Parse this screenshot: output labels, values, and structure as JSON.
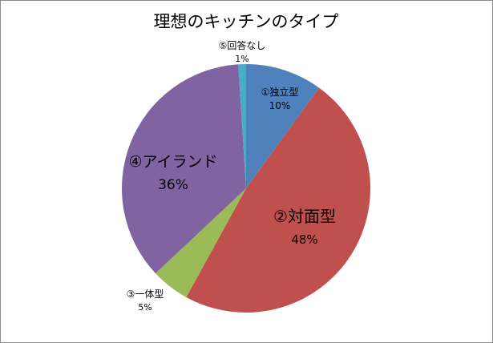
{
  "chart_data": {
    "type": "pie",
    "title": "理想のキッチンのタイプ",
    "categories": [
      "①独立型",
      "②対面型",
      "③一体型",
      "④アイランド",
      "⑤回答なし"
    ],
    "values": [
      10,
      48,
      5,
      36,
      1
    ],
    "value_labels": [
      "10%",
      "48%",
      "5%",
      "36%",
      "1%"
    ],
    "colors": [
      "#4f81bd",
      "#c0504d",
      "#9bbb59",
      "#8064a2",
      "#4bacc6"
    ],
    "start_angle": "12 o'clock",
    "direction": "clockwise",
    "legend": "none",
    "labels": "category name and percentage on or beside each slice"
  }
}
